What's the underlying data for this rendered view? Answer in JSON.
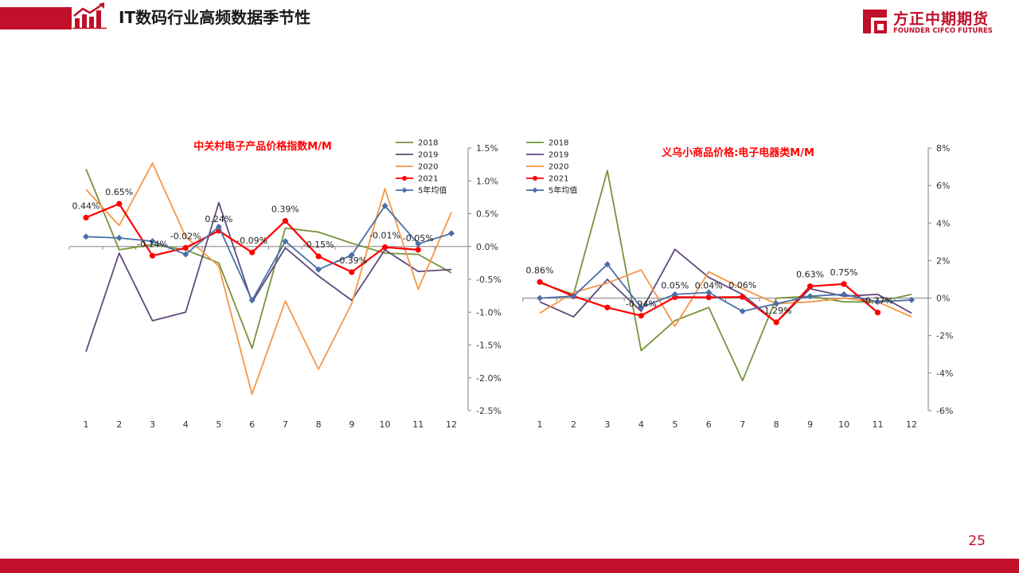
{
  "header": {
    "title": "IT数码行业高频数据季节性"
  },
  "logo": {
    "cn": "方正中期期货",
    "en": "FOUNDER CIFCO FUTURES"
  },
  "page_number": "25",
  "colors": {
    "accent": "#c0102a",
    "s2018": "#77933c",
    "s2019": "#604a7b",
    "s2020": "#f79646",
    "s2021": "#ff0000",
    "avg": "#4a6ea8"
  },
  "icons": {
    "header": "bar-chart-growth-icon",
    "logo": "founder-logo-icon"
  },
  "chart_data": [
    {
      "type": "line",
      "title": "中关村电子产品价格指数M/M",
      "categories": [
        "1",
        "2",
        "3",
        "4",
        "5",
        "6",
        "7",
        "8",
        "9",
        "10",
        "11",
        "12"
      ],
      "yticks": [
        "1.5%",
        "1.0%",
        "0.5%",
        "0.0%",
        "-0.5%",
        "-1.0%",
        "-1.5%",
        "-2.0%",
        "-2.5%"
      ],
      "ylim": [
        -2.5,
        1.5
      ],
      "y_axis_side": "right",
      "legend_position": "top-right",
      "series": [
        {
          "name": "2018",
          "color": "#77933c",
          "values": [
            1.18,
            -0.05,
            0.03,
            -0.05,
            -0.25,
            -1.55,
            0.28,
            0.22,
            0.05,
            -0.1,
            -0.12,
            -0.4
          ]
        },
        {
          "name": "2019",
          "color": "#604a7b",
          "values": [
            -1.6,
            -0.1,
            -1.13,
            -1.0,
            0.67,
            -0.85,
            -0.02,
            -0.45,
            -0.82,
            -0.05,
            -0.38,
            -0.35
          ]
        },
        {
          "name": "2020",
          "color": "#f79646",
          "values": [
            0.87,
            0.32,
            1.27,
            0.15,
            -0.3,
            -2.25,
            -0.83,
            -1.87,
            -0.87,
            0.88,
            -0.65,
            0.52
          ]
        },
        {
          "name": "2021",
          "color": "#ff0000",
          "marker": "circle",
          "values": [
            0.44,
            0.65,
            -0.14,
            -0.02,
            0.24,
            -0.09,
            0.39,
            -0.15,
            -0.39,
            -0.01,
            -0.05,
            null
          ],
          "labels": [
            "0.44%",
            "0.65%",
            "-0.14%",
            "-0.02%",
            "0.24%",
            "-0.09%",
            "0.39%",
            "-0.15%",
            "-0.39%",
            "-0.01%",
            "-0.05%",
            ""
          ]
        },
        {
          "name": "5年均值",
          "color": "#4a6ea8",
          "marker": "diamond",
          "values": [
            0.15,
            0.13,
            0.08,
            -0.12,
            0.3,
            -0.82,
            0.08,
            -0.35,
            -0.13,
            0.62,
            0.04,
            0.2
          ]
        }
      ]
    },
    {
      "type": "line",
      "title": "义乌小商品价格:电子电器类M/M",
      "categories": [
        "1",
        "2",
        "3",
        "4",
        "5",
        "6",
        "7",
        "8",
        "9",
        "10",
        "11",
        "12"
      ],
      "yticks": [
        "8%",
        "6%",
        "4%",
        "2%",
        "0%",
        "-2%",
        "-4%",
        "-6%"
      ],
      "ylim": [
        -6,
        8
      ],
      "y_axis_side": "right",
      "legend_position": "top-left",
      "series": [
        {
          "name": "2018",
          "color": "#77933c",
          "values": [
            0.8,
            0.2,
            6.8,
            -2.8,
            -1.2,
            -0.5,
            -4.4,
            0.0,
            0.1,
            -0.2,
            -0.2,
            0.2
          ]
        },
        {
          "name": "2019",
          "color": "#604a7b",
          "values": [
            -0.2,
            -1.0,
            1.0,
            -0.7,
            2.6,
            1.1,
            0.2,
            -1.3,
            0.5,
            0.1,
            0.2,
            -0.8
          ]
        },
        {
          "name": "2020",
          "color": "#f79646",
          "values": [
            -0.8,
            0.3,
            0.8,
            1.5,
            -1.5,
            1.4,
            0.5,
            -0.3,
            -0.2,
            0.0,
            -0.2,
            -1.0
          ]
        },
        {
          "name": "2021",
          "color": "#ff0000",
          "marker": "circle",
          "values": [
            0.86,
            0.1,
            -0.5,
            -0.94,
            0.05,
            0.04,
            0.06,
            -1.29,
            0.63,
            0.75,
            -0.77,
            null
          ],
          "labels": [
            "0.86%",
            "",
            "",
            "-0.94%",
            "0.05%",
            "0.04%",
            "0.06%",
            "-1.29%",
            "0.63%",
            "0.75%",
            "-0.77%",
            ""
          ]
        },
        {
          "name": "5年均值",
          "color": "#4a6ea8",
          "marker": "diamond",
          "values": [
            0.0,
            0.1,
            1.8,
            -0.5,
            0.2,
            0.3,
            -0.7,
            -0.3,
            0.1,
            0.2,
            -0.2,
            -0.1
          ]
        }
      ]
    }
  ]
}
